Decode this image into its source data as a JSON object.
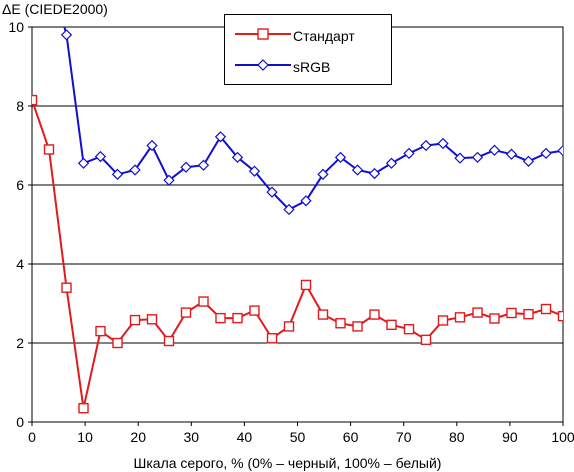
{
  "chart_data": {
    "type": "line",
    "title": "",
    "ylabel": "ΔE (CIEDE2000)",
    "xlabel": "Шкала серого, % (0% – черный, 100% – белый)",
    "xlim": [
      0,
      100
    ],
    "ylim": [
      0,
      10
    ],
    "x_ticks": [
      "0",
      "10",
      "20",
      "30",
      "40",
      "50",
      "60",
      "70",
      "80",
      "90",
      "100"
    ],
    "y_ticks": [
      "0",
      "2",
      "4",
      "6",
      "8",
      "10"
    ],
    "grid": "horizontal",
    "legend_position": "top-center",
    "series": [
      {
        "name": "Стандарт",
        "color": "#e31a1c",
        "marker": "square",
        "x": [
          0,
          3.2,
          6.5,
          9.7,
          12.9,
          16.1,
          19.4,
          22.6,
          25.8,
          29,
          32.3,
          35.5,
          38.7,
          41.9,
          45.2,
          48.4,
          51.6,
          54.8,
          58.1,
          61.3,
          64.5,
          67.7,
          71,
          74.2,
          77.4,
          80.6,
          83.9,
          87.1,
          90.3,
          93.5,
          96.8,
          100
        ],
        "y": [
          8.15,
          6.9,
          3.4,
          0.35,
          2.3,
          2.0,
          2.58,
          2.6,
          2.05,
          2.77,
          3.05,
          2.63,
          2.63,
          2.82,
          2.12,
          2.42,
          3.47,
          2.72,
          2.5,
          2.42,
          2.72,
          2.46,
          2.35,
          2.08,
          2.57,
          2.65,
          2.77,
          2.62,
          2.76,
          2.73,
          2.86,
          2.68
        ]
      },
      {
        "name": "sRGB",
        "color": "#1010d0",
        "marker": "diamond",
        "x": [
          5.7,
          6.5,
          9.7,
          12.9,
          16.1,
          19.4,
          22.6,
          25.8,
          29,
          32.3,
          35.5,
          38.7,
          41.9,
          45.2,
          48.4,
          51.6,
          54.8,
          58.1,
          61.3,
          64.5,
          67.7,
          71,
          74.2,
          77.4,
          80.6,
          83.9,
          87.1,
          90.3,
          93.5,
          96.8,
          100
        ],
        "y": [
          10.2,
          9.8,
          6.55,
          6.72,
          6.27,
          6.38,
          7.0,
          6.12,
          6.45,
          6.5,
          7.22,
          6.7,
          6.35,
          5.82,
          5.38,
          5.6,
          6.27,
          6.7,
          6.38,
          6.29,
          6.55,
          6.8,
          7.0,
          7.05,
          6.68,
          6.7,
          6.88,
          6.78,
          6.6,
          6.8,
          6.87
        ]
      }
    ]
  }
}
